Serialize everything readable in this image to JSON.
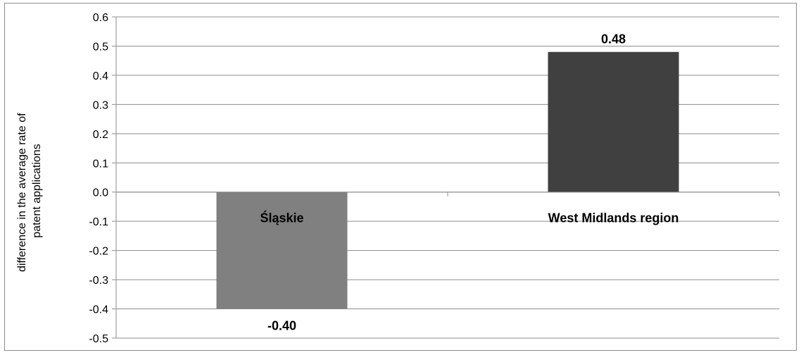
{
  "chart_data": {
    "type": "bar",
    "title": "",
    "xlabel": "",
    "ylabel": "difference in the average rate of patent applications",
    "ylabel_lines": [
      "difference in the average rate of",
      "patent applications"
    ],
    "categories": [
      "Śląskie",
      "West Midlands region"
    ],
    "values": [
      -0.4,
      0.48
    ],
    "data_labels": [
      "-0.40",
      "0.48"
    ],
    "bar_colors": [
      "#808080",
      "#404040"
    ],
    "ylim": [
      -0.5,
      0.6
    ],
    "y_ticks": [
      0.6,
      0.5,
      0.4,
      0.3,
      0.2,
      0.1,
      0.0,
      -0.1,
      -0.2,
      -0.3,
      -0.4,
      -0.5
    ],
    "y_tick_labels": [
      "0.6",
      "0.5",
      "0.4",
      "0.3",
      "0.2",
      "0.1",
      "0.0",
      "-0.1",
      "-0.2",
      "-0.3",
      "-0.4",
      "-0.5"
    ],
    "grid": true,
    "legend": "none",
    "gridline_color": "#8c8c8c"
  }
}
